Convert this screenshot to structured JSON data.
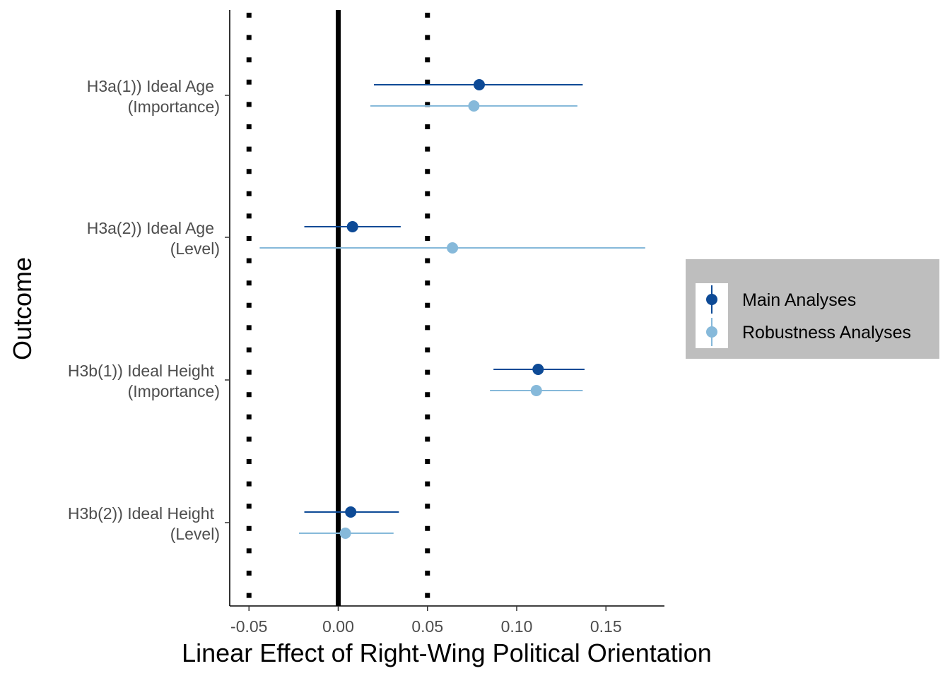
{
  "chart_data": {
    "type": "forest",
    "xlabel": "Linear Effect of Right-Wing Political Orientation",
    "ylabel": "Outcome",
    "xlim": [
      -0.06,
      0.182
    ],
    "xticks": [
      -0.05,
      0.0,
      0.05,
      0.1,
      0.15
    ],
    "xtick_labels": [
      "-0.05",
      "0.00",
      "0.05",
      "0.10",
      "0.15"
    ],
    "reference_lines": [
      {
        "x": 0.0,
        "style": "solid"
      },
      {
        "x": -0.05,
        "style": "dotted"
      },
      {
        "x": 0.05,
        "style": "dotted"
      }
    ],
    "categories": [
      {
        "line1": "H3a(1)) Ideal Age",
        "line2": "(Importance)"
      },
      {
        "line1": "H3a(2)) Ideal Age",
        "line2": "(Level)"
      },
      {
        "line1": "H3b(1)) Ideal Height",
        "line2": "(Importance)"
      },
      {
        "line1": "H3b(2)) Ideal Height",
        "line2": "(Level)"
      }
    ],
    "series": [
      {
        "name": "Main Analyses",
        "color": "#0d4a96",
        "points": [
          {
            "estimate": 0.079,
            "lower": 0.02,
            "upper": 0.137
          },
          {
            "estimate": 0.008,
            "lower": -0.019,
            "upper": 0.035
          },
          {
            "estimate": 0.112,
            "lower": 0.087,
            "upper": 0.138
          },
          {
            "estimate": 0.007,
            "lower": -0.019,
            "upper": 0.034
          }
        ]
      },
      {
        "name": "Robustness Analyses",
        "color": "#86b9da",
        "points": [
          {
            "estimate": 0.076,
            "lower": 0.018,
            "upper": 0.134
          },
          {
            "estimate": 0.064,
            "lower": -0.044,
            "upper": 0.172
          },
          {
            "estimate": 0.111,
            "lower": 0.085,
            "upper": 0.137
          },
          {
            "estimate": 0.004,
            "lower": -0.022,
            "upper": 0.031
          }
        ]
      }
    ],
    "legend": {
      "position": "right",
      "background": "#bebebe"
    }
  }
}
